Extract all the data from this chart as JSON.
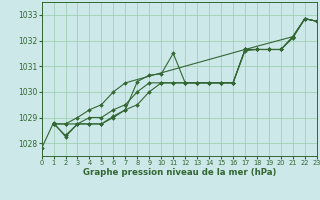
{
  "bg_color": "#cce8e8",
  "grid_color": "#99ccaa",
  "line_color": "#336633",
  "marker_color": "#336633",
  "xlabel": "Graphe pression niveau de la mer (hPa)",
  "xlabel_color": "#336633",
  "ylim": [
    1027.5,
    1033.5
  ],
  "xlim": [
    0,
    23
  ],
  "yticks": [
    1028,
    1029,
    1030,
    1031,
    1032,
    1033
  ],
  "xticks": [
    0,
    1,
    2,
    3,
    4,
    5,
    6,
    7,
    8,
    9,
    10,
    11,
    12,
    13,
    14,
    15,
    16,
    17,
    18,
    19,
    20,
    21,
    22,
    23
  ],
  "series": [
    {
      "x": [
        0,
        1,
        2,
        3,
        4,
        5,
        6,
        7,
        8,
        9,
        10,
        11,
        12,
        13,
        14,
        15,
        16,
        17,
        18,
        19,
        20,
        21,
        22,
        23
      ],
      "y": [
        1027.8,
        1028.8,
        1028.25,
        1028.75,
        1028.75,
        1028.75,
        1029.0,
        1029.3,
        1030.4,
        1030.65,
        1030.7,
        1031.5,
        1030.35,
        1030.35,
        1030.35,
        1030.35,
        1030.35,
        1031.6,
        1031.65,
        1031.65,
        1031.65,
        1032.1,
        1032.85,
        1032.75
      ]
    },
    {
      "x": [
        1,
        2,
        3,
        4,
        5,
        6,
        7,
        8,
        9,
        10,
        11,
        12,
        13,
        14,
        15,
        16,
        17,
        18,
        19,
        20,
        21,
        22,
        23
      ],
      "y": [
        1028.75,
        1028.3,
        1028.75,
        1028.75,
        1028.75,
        1029.05,
        1029.3,
        1029.5,
        1030.0,
        1030.35,
        1030.35,
        1030.35,
        1030.35,
        1030.35,
        1030.35,
        1030.35,
        1031.65,
        1031.65,
        1031.65,
        1031.65,
        1032.15,
        1032.85,
        1032.75
      ]
    },
    {
      "x": [
        1,
        2,
        3,
        4,
        5,
        6,
        7,
        8,
        9,
        10,
        11,
        12,
        13,
        14,
        15,
        16,
        17,
        21,
        22,
        23
      ],
      "y": [
        1028.75,
        1028.75,
        1028.75,
        1029.0,
        1029.0,
        1029.3,
        1029.5,
        1030.0,
        1030.35,
        1030.35,
        1030.35,
        1030.35,
        1030.35,
        1030.35,
        1030.35,
        1030.35,
        1031.65,
        1032.15,
        1032.85,
        1032.75
      ]
    },
    {
      "x": [
        1,
        2,
        3,
        4,
        5,
        6,
        7,
        17,
        18,
        19,
        20,
        21,
        22,
        23
      ],
      "y": [
        1028.75,
        1028.75,
        1029.0,
        1029.3,
        1029.5,
        1030.0,
        1030.35,
        1031.65,
        1031.65,
        1031.65,
        1031.65,
        1032.15,
        1032.85,
        1032.75
      ]
    }
  ]
}
